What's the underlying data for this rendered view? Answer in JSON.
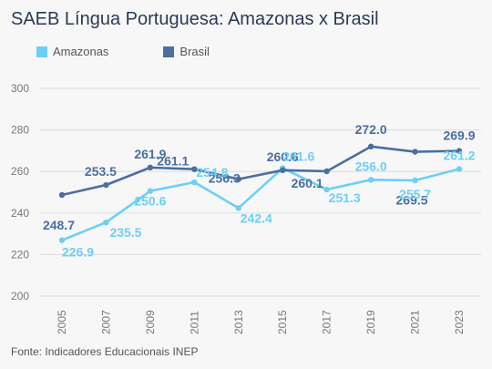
{
  "title": "SAEB Língua Portuguesa: Amazonas x Brasil",
  "source": "Fonte: Indicadores Educacionais INEP",
  "colors": {
    "amazonas": "#6ccff6",
    "brasil": "#4a6fa0",
    "grid": "#dddddd"
  },
  "chart_data": {
    "type": "line",
    "x": [
      "2005",
      "2007",
      "2009",
      "2011",
      "2013",
      "2015",
      "2017",
      "2019",
      "2021",
      "2023"
    ],
    "ylim": [
      200,
      300
    ],
    "yticks": [
      200,
      220,
      240,
      260,
      280,
      300
    ],
    "ytick_labels": [
      "200",
      "220",
      "240",
      "260",
      "280",
      "300"
    ],
    "grid": true,
    "legend_position": "top-left",
    "series": [
      {
        "name": "Amazonas",
        "values": [
          226.9,
          235.5,
          250.6,
          254.8,
          242.4,
          261.6,
          251.3,
          256.0,
          255.7,
          261.2
        ],
        "labels": [
          "226.9",
          "235.5",
          "250.6",
          "254.8",
          "242.4",
          "261.6",
          "251.3",
          "256.0",
          "255.7",
          "261.2"
        ]
      },
      {
        "name": "Brasil",
        "values": [
          248.7,
          253.5,
          261.9,
          261.1,
          256.3,
          260.6,
          260.1,
          272.0,
          269.5,
          269.9
        ],
        "labels": [
          "248.7",
          "253.5",
          "261.9",
          "261.1",
          "256.3",
          "260.6",
          "260.1",
          "272.0",
          "269.5",
          "269.9"
        ]
      }
    ]
  }
}
